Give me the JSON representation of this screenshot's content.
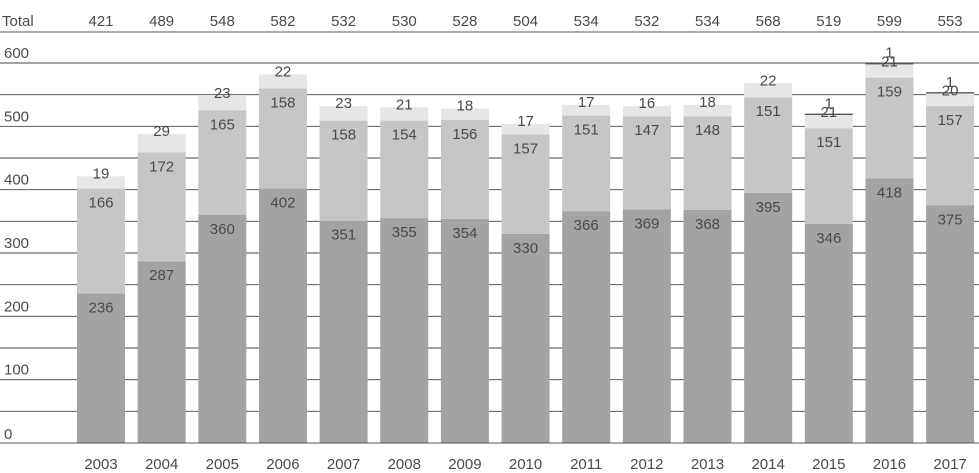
{
  "chart_data": {
    "type": "bar",
    "stacked": true,
    "total_label": "Total",
    "categories": [
      "2003",
      "2004",
      "2005",
      "2006",
      "2007",
      "2008",
      "2009",
      "2010",
      "2011",
      "2012",
      "2013",
      "2014",
      "2015",
      "2016",
      "2017"
    ],
    "totals": [
      421,
      489,
      548,
      582,
      532,
      530,
      528,
      504,
      534,
      532,
      534,
      568,
      519,
      599,
      553
    ],
    "series": [
      {
        "values": [
          236,
          287,
          360,
          402,
          351,
          355,
          354,
          330,
          366,
          369,
          368,
          395,
          346,
          418,
          375
        ],
        "color": "#a3a3a3"
      },
      {
        "values": [
          166,
          172,
          165,
          158,
          158,
          154,
          156,
          157,
          151,
          147,
          148,
          151,
          151,
          159,
          157
        ],
        "color": "#c6c6c6"
      },
      {
        "values": [
          19,
          29,
          23,
          22,
          23,
          21,
          18,
          17,
          17,
          16,
          18,
          22,
          21,
          21,
          20
        ],
        "color": "#e6e6e6"
      },
      {
        "values": [
          null,
          null,
          null,
          null,
          null,
          null,
          null,
          null,
          null,
          null,
          null,
          null,
          1,
          1,
          1
        ],
        "color": "#ffffff"
      }
    ],
    "yticks": [
      0,
      100,
      200,
      300,
      400,
      500,
      600
    ],
    "ylim": [
      0,
      600
    ],
    "grid": true,
    "xlabel": "",
    "ylabel": ""
  }
}
